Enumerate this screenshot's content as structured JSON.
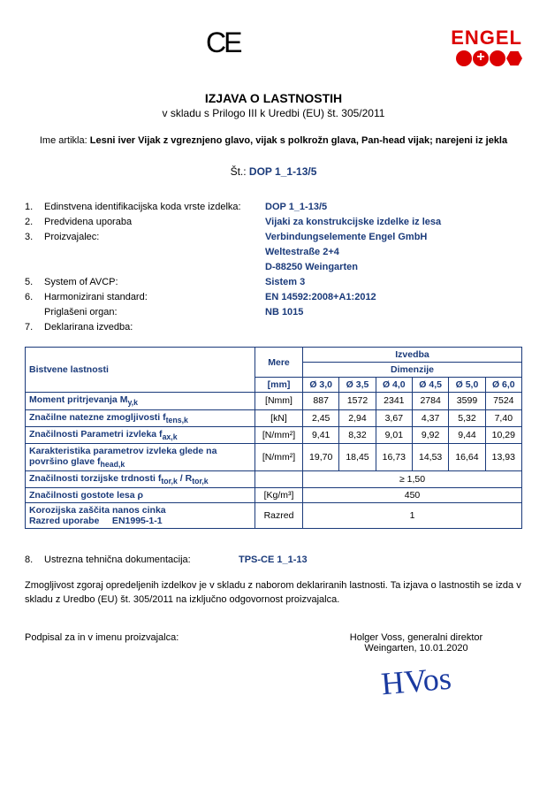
{
  "logo_text": "ENGEL",
  "ce_mark": "CE",
  "title_main": "IZJAVA O LASTNOSTIH",
  "title_sub": "v skladu s Prilogo III k Uredbi (EU) št. 305/2011",
  "article_prefix": "Ime artikla: ",
  "article_bold": "Lesni iver Vijak z vgreznjeno glavo, vijak s polkrožn glava, Pan-head vijak; narejeni iz jekla",
  "dop_prefix": "Št.: ",
  "dop_value": "DOP 1_1-13/5",
  "info": [
    {
      "n": "1.",
      "l": "Edinstvena identifikacijska koda vrste izdelka:",
      "v": [
        "DOP 1_1-13/5"
      ]
    },
    {
      "n": "2.",
      "l": "Predvidena uporaba",
      "v": [
        "Vijaki za konstrukcijske izdelke iz lesa"
      ]
    },
    {
      "n": "3.",
      "l": "Proizvajalec:",
      "v": [
        "Verbindungselemente Engel GmbH",
        "Weltestraße 2+4",
        "D-88250 Weingarten"
      ]
    },
    {
      "n": "5.",
      "l": "System of AVCP:",
      "v": [
        "Sistem 3"
      ]
    },
    {
      "n": "6.",
      "l": "Harmonizirani standard:",
      "v": [
        "EN 14592:2008+A1:2012"
      ]
    },
    {
      "n": "",
      "l": "Priglašeni organ:",
      "v": [
        "NB 1015"
      ]
    },
    {
      "n": "7.",
      "l": "Deklarirana izvedba:",
      "v": [
        ""
      ]
    }
  ],
  "table": {
    "h_props": "Bistvene lastnosti",
    "h_mere": "Mere",
    "h_izvedba": "Izvedba",
    "h_dim": "Dimenzije",
    "unit_hdr": "[mm]",
    "diams": [
      "Ø 3,0",
      "Ø 3,5",
      "Ø 4,0",
      "Ø 4,5",
      "Ø 5,0",
      "Ø 6,0"
    ],
    "rows": [
      {
        "l": "Moment pritrjevanja M<sub>y,k</sub>",
        "u": "[Nmm]",
        "v": [
          "887",
          "1572",
          "2341",
          "2784",
          "3599",
          "7524"
        ]
      },
      {
        "l": "Značilne natezne zmogljivosti f<sub>tens,k</sub>",
        "u": "[kN]",
        "v": [
          "2,45",
          "2,94",
          "3,67",
          "4,37",
          "5,32",
          "7,40"
        ]
      },
      {
        "l": "Značilnosti Parametri izvleka f<sub>ax,k</sub>",
        "u": "[N/mm²]",
        "v": [
          "9,41",
          "8,32",
          "9,01",
          "9,92",
          "9,44",
          "10,29"
        ]
      },
      {
        "l": "Karakteristika parametrov izvleka glede na površino glave f<sub>head,k</sub>",
        "u": "[N/mm²]",
        "v": [
          "19,70",
          "18,45",
          "16,73",
          "14,53",
          "16,64",
          "13,93"
        ]
      }
    ],
    "row_tor": {
      "l": "Značilnosti torzijske trdnosti f<sub>tor,k</sub> / R<sub>tor,k</sub>",
      "v": "≥ 1,50"
    },
    "row_rho": {
      "l": "Značilnosti gostote lesa ρ",
      "u": "[Kg/m³]",
      "v": "450"
    },
    "row_kor": {
      "l": "Korozijska zaščita nanos cinka<br>Razred uporabe &nbsp;&nbsp;&nbsp; EN1995-1-1",
      "u": "Razred",
      "v": "1"
    }
  },
  "sec8_num": "8.",
  "sec8_label": "Ustrezna tehnična dokumentacija:",
  "sec8_val": "TPS-CE 1_1-13",
  "para": "Zmogljivost zgoraj opredeljenih izdelkov je v skladu z naborom deklariranih lastnosti. Ta izjava o lastnostih se izda v skladu z Uredbo (EU) št. 305/2011 na izključno odgovornost proizvajalca.",
  "sig_left": "Podpisal za in v imenu proizvajalca:",
  "sig_name": "Holger Voss, generalni direktor",
  "sig_place": "Weingarten, 10.01.2020",
  "signature": "HVos"
}
